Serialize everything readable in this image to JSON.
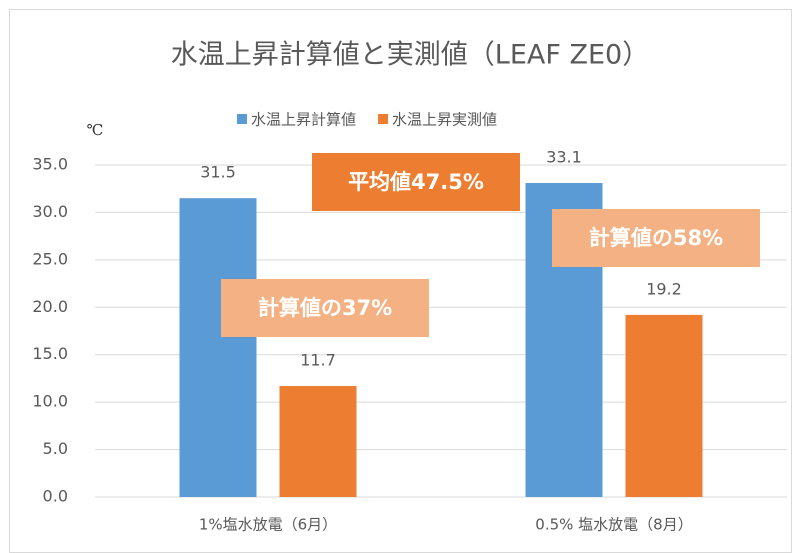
{
  "chart_data": {
    "type": "bar",
    "title": "水温上昇計算値と実測値（LEAF ZE0）",
    "y_unit": "℃",
    "categories": [
      "1%塩水放電（6月）",
      "0.5% 塩水放電（8月）"
    ],
    "series": [
      {
        "name": "水温上昇計算値",
        "color": "#5b9bd5",
        "values": [
          31.5,
          33.1
        ]
      },
      {
        "name": "水温上昇実測値",
        "color": "#ed7d31",
        "values": [
          11.7,
          19.2
        ]
      }
    ],
    "ylim": [
      0,
      35
    ],
    "yticks": [
      {
        "value": 0,
        "label": "0.0"
      },
      {
        "value": 5,
        "label": "5.0"
      },
      {
        "value": 10,
        "label": "10.0"
      },
      {
        "value": 15,
        "label": "15.0"
      },
      {
        "value": 20,
        "label": "20.0"
      },
      {
        "value": 25,
        "label": "25.0"
      },
      {
        "value": 30,
        "label": "30.0"
      },
      {
        "value": 35,
        "label": "35.0"
      }
    ],
    "grid": true,
    "legend": "top",
    "annotations": [
      {
        "text": "平均値47.5%",
        "color": "#ed7d31"
      },
      {
        "text": "計算値の37%",
        "color": "#f4b183"
      },
      {
        "text": "計算値の58%",
        "color": "#f4b183"
      }
    ]
  }
}
